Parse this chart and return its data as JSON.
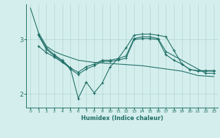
{
  "xlabel": "Humidex (Indice chaleur)",
  "bg_color": "#d4eeed",
  "grid_color": "#b0d5d0",
  "line_color": "#1e6e65",
  "xlim": [
    -0.5,
    23.5
  ],
  "ylim": [
    1.75,
    3.65
  ],
  "yticks": [
    2,
    3
  ],
  "xticks": [
    0,
    1,
    2,
    3,
    4,
    5,
    6,
    7,
    8,
    9,
    10,
    11,
    12,
    13,
    14,
    15,
    16,
    17,
    18,
    19,
    20,
    21,
    22,
    23
  ],
  "series1_x": [
    0,
    1,
    2,
    3,
    4,
    5,
    6,
    7,
    8,
    9,
    10,
    11,
    12,
    13,
    14,
    15,
    16,
    17,
    18,
    19,
    20,
    21,
    22,
    23
  ],
  "series1_y": [
    3.58,
    3.13,
    2.88,
    2.78,
    2.72,
    2.67,
    2.62,
    2.6,
    2.58,
    2.57,
    2.56,
    2.55,
    2.54,
    2.53,
    2.52,
    2.5,
    2.48,
    2.46,
    2.44,
    2.42,
    2.38,
    2.34,
    2.33,
    2.32
  ],
  "series2_x": [
    1,
    2,
    3,
    4,
    5,
    6,
    7,
    8,
    9,
    10,
    11,
    12,
    13,
    14,
    15,
    16,
    17,
    22,
    23
  ],
  "series2_y": [
    2.88,
    2.76,
    2.68,
    2.58,
    2.48,
    2.4,
    2.5,
    2.55,
    2.62,
    2.62,
    2.65,
    2.7,
    3.02,
    3.05,
    3.05,
    3.02,
    2.78,
    2.38,
    2.38
  ],
  "series3_x": [
    1,
    2,
    3,
    4,
    5,
    6,
    7,
    8,
    9,
    10,
    11,
    12,
    13,
    14,
    15,
    16,
    17,
    18,
    19,
    20,
    21,
    22,
    23
  ],
  "series3_y": [
    3.1,
    2.85,
    2.72,
    2.62,
    2.48,
    1.92,
    2.22,
    2.02,
    2.2,
    2.5,
    2.65,
    2.85,
    3.08,
    3.1,
    3.1,
    3.08,
    3.05,
    2.8,
    2.55,
    2.45,
    2.43,
    2.43,
    2.43
  ],
  "series4_x": [
    1,
    2,
    3,
    4,
    5,
    6,
    7,
    8,
    9,
    10,
    11,
    12,
    13,
    14,
    15,
    16,
    17,
    18,
    19,
    20,
    21,
    22,
    23
  ],
  "series4_y": [
    3.08,
    2.82,
    2.7,
    2.6,
    2.46,
    2.36,
    2.46,
    2.52,
    2.6,
    2.6,
    2.62,
    2.66,
    3.0,
    3.02,
    3.02,
    3.0,
    2.72,
    2.62,
    2.55,
    2.45,
    2.42,
    2.42,
    2.42
  ]
}
